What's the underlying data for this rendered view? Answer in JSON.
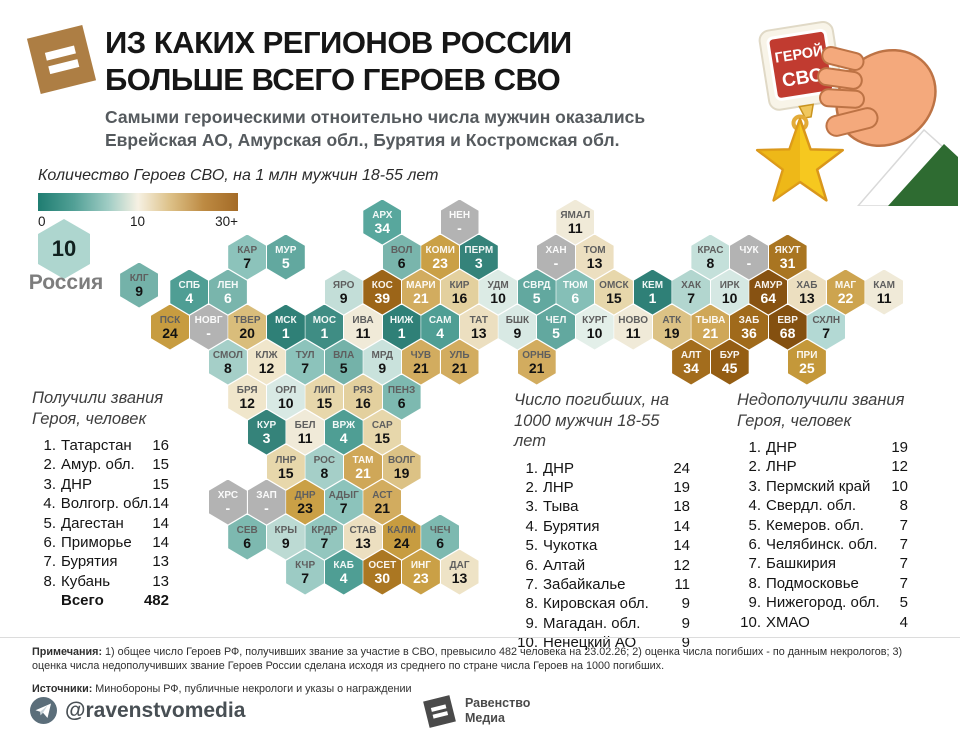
{
  "header": {
    "title_line1": "ИЗ КАКИХ РЕГИОНОВ РОССИИ",
    "title_line2": "БОЛЬШЕ ВСЕГО ГЕРОЕВ СВО",
    "subtitle_line1": "Самыми героическими отноительно числа мужчин оказались",
    "subtitle_line2": "Еврейская АО, Амурская обл., Бурятия и Костромская обл.",
    "medal": {
      "badge_line1": "ГЕРОЙ",
      "badge_line2": "СВО"
    }
  },
  "chart_data": {
    "type": "heatmap",
    "title": "ИЗ КАКИХ РЕГИОНОВ РОССИИ БОЛЬШЕ ВСЕГО ГЕРОЕВ СВО",
    "unit_label": "Количество Героев СВО, на 1 млн мужчин 18-55 лет",
    "scale": {
      "min": "0",
      "mid": "10",
      "max": "30+",
      "color_low": "#1f7d71",
      "color_mid": "#f6f1e3",
      "color_high": "#a46b27",
      "color_nodata": "#b3b3b3"
    },
    "national": {
      "label": "Россия",
      "value": "10",
      "color": "#aed6cf"
    },
    "regions": [
      {
        "l": "АРХ",
        "v": "34",
        "c": 11,
        "r": 0,
        "bg": "#58a79d",
        "t": "l"
      },
      {
        "l": "НЕН",
        "v": "-",
        "c": 15,
        "r": 0,
        "bg": "#b3b3b3",
        "t": "l"
      },
      {
        "l": "ЯМАЛ",
        "v": "11",
        "c": 21,
        "r": 0,
        "bg": "#f0ead8",
        "t": "d"
      },
      {
        "l": "КАР",
        "v": "7",
        "c": 4,
        "r": 1,
        "bg": "#8cc3bb",
        "t": "d"
      },
      {
        "l": "МУР",
        "v": "5",
        "c": 6,
        "r": 1,
        "bg": "#62a89f",
        "t": "l"
      },
      {
        "l": "ВОЛ",
        "v": "6",
        "c": 12,
        "r": 1,
        "bg": "#79b5ac",
        "t": "d"
      },
      {
        "l": "КОМИ",
        "v": "23",
        "c": 14,
        "r": 1,
        "bg": "#caa046",
        "t": "l"
      },
      {
        "l": "ПЕРМ",
        "v": "3",
        "c": 16,
        "r": 1,
        "bg": "#35837a",
        "t": "l"
      },
      {
        "l": "ХАН",
        "v": "-",
        "c": 20,
        "r": 1,
        "bg": "#b3b3b3",
        "t": "l"
      },
      {
        "l": "ТОМ",
        "v": "13",
        "c": 22,
        "r": 1,
        "bg": "#ecdfc0",
        "t": "d"
      },
      {
        "l": "КРАС",
        "v": "8",
        "c": 28,
        "r": 1,
        "bg": "#c4e0da",
        "t": "d"
      },
      {
        "l": "ЧУК",
        "v": "-",
        "c": 30,
        "r": 1,
        "bg": "#b3b3b3",
        "t": "l"
      },
      {
        "l": "ЯКУТ",
        "v": "31",
        "c": 32,
        "r": 1,
        "bg": "#a97521",
        "t": "l"
      },
      {
        "l": "КЛГ",
        "v": "9",
        "c": -1.6,
        "r": 1.8,
        "bg": "#74b2a9",
        "t": "d"
      },
      {
        "l": "СПБ",
        "v": "4",
        "c": 1,
        "r": 2,
        "bg": "#4f9e94",
        "t": "l"
      },
      {
        "l": "ЛЕН",
        "v": "6",
        "c": 3,
        "r": 2,
        "bg": "#79b5ac",
        "t": "l"
      },
      {
        "l": "ЯРО",
        "v": "9",
        "c": 9,
        "r": 2,
        "bg": "#c3ded8",
        "t": "d"
      },
      {
        "l": "КОС",
        "v": "39",
        "c": 11,
        "r": 2,
        "bg": "#9c6518",
        "t": "l"
      },
      {
        "l": "МАРИ",
        "v": "21",
        "c": 13,
        "r": 2,
        "bg": "#d2ac5f",
        "t": "l"
      },
      {
        "l": "КИР",
        "v": "16",
        "c": 15,
        "r": 2,
        "bg": "#e3d09e",
        "t": "d"
      },
      {
        "l": "УДМ",
        "v": "10",
        "c": 17,
        "r": 2,
        "bg": "#dcebe5",
        "t": "d"
      },
      {
        "l": "СВРД",
        "v": "5",
        "c": 19,
        "r": 2,
        "bg": "#62a89f",
        "t": "l"
      },
      {
        "l": "ТЮМ",
        "v": "6",
        "c": 21,
        "r": 2,
        "bg": "#85bfb7",
        "t": "l"
      },
      {
        "l": "ОМСК",
        "v": "15",
        "c": 23,
        "r": 2,
        "bg": "#e7d7ab",
        "t": "d"
      },
      {
        "l": "КЕМ",
        "v": "1",
        "c": 25,
        "r": 2,
        "bg": "#2f8077",
        "t": "l"
      },
      {
        "l": "ХАК",
        "v": "7",
        "c": 27,
        "r": 2,
        "bg": "#b2d6cf",
        "t": "d"
      },
      {
        "l": "ИРК",
        "v": "10",
        "c": 29,
        "r": 2,
        "bg": "#d5e8e3",
        "t": "d"
      },
      {
        "l": "АМУР",
        "v": "64",
        "c": 31,
        "r": 2,
        "bg": "#875212",
        "t": "l"
      },
      {
        "l": "ХАБ",
        "v": "13",
        "c": 33,
        "r": 2,
        "bg": "#ecdfc0",
        "t": "d"
      },
      {
        "l": "МАГ",
        "v": "22",
        "c": 35,
        "r": 2,
        "bg": "#cda44f",
        "t": "l"
      },
      {
        "l": "КАМ",
        "v": "11",
        "c": 37,
        "r": 2,
        "bg": "#f0ead8",
        "t": "d"
      },
      {
        "l": "ПСК",
        "v": "24",
        "c": 0,
        "r": 3,
        "bg": "#c79c40",
        "t": "d"
      },
      {
        "l": "НОВГ",
        "v": "-",
        "c": 2,
        "r": 3,
        "bg": "#b3b3b3",
        "t": "l"
      },
      {
        "l": "ТВЕР",
        "v": "20",
        "c": 4,
        "r": 3,
        "bg": "#d9bd7b",
        "t": "d"
      },
      {
        "l": "МСК",
        "v": "1",
        "c": 6,
        "r": 3,
        "bg": "#2f8077",
        "t": "l"
      },
      {
        "l": "МОС",
        "v": "1",
        "c": 8,
        "r": 3,
        "bg": "#3f8d84",
        "t": "l"
      },
      {
        "l": "ИВА",
        "v": "11",
        "c": 10,
        "r": 3,
        "bg": "#f0ead8",
        "t": "d"
      },
      {
        "l": "НИЖ",
        "v": "1",
        "c": 12,
        "r": 3,
        "bg": "#2f8077",
        "t": "l"
      },
      {
        "l": "САМ",
        "v": "4",
        "c": 14,
        "r": 3,
        "bg": "#4f9e94",
        "t": "l"
      },
      {
        "l": "ТАТ",
        "v": "13",
        "c": 16,
        "r": 3,
        "bg": "#ecdfc0",
        "t": "d"
      },
      {
        "l": "БШК",
        "v": "9",
        "c": 18,
        "r": 3,
        "bg": "#d8e9e4",
        "t": "d"
      },
      {
        "l": "ЧЕЛ",
        "v": "5",
        "c": 20,
        "r": 3,
        "bg": "#62a89f",
        "t": "l"
      },
      {
        "l": "КУРГ",
        "v": "10",
        "c": 22,
        "r": 3,
        "bg": "#e3efe9",
        "t": "d"
      },
      {
        "l": "НОВО",
        "v": "11",
        "c": 24,
        "r": 3,
        "bg": "#f0ead8",
        "t": "d"
      },
      {
        "l": "АТК",
        "v": "19",
        "c": 26,
        "r": 3,
        "bg": "#dcc285",
        "t": "d"
      },
      {
        "l": "ТЫВА",
        "v": "21",
        "c": 28,
        "r": 3,
        "bg": "#cfa758",
        "t": "l"
      },
      {
        "l": "ЗАБ",
        "v": "36",
        "c": 30,
        "r": 3,
        "bg": "#a06a1b",
        "t": "l"
      },
      {
        "l": "ЕВР",
        "v": "68",
        "c": 32,
        "r": 3,
        "bg": "#845010",
        "t": "l"
      },
      {
        "l": "СХЛН",
        "v": "7",
        "c": 34,
        "r": 3,
        "bg": "#b3d9d4",
        "t": "d"
      },
      {
        "l": "СМОЛ",
        "v": "8",
        "c": 3,
        "r": 4,
        "bg": "#a5cfc8",
        "t": "d"
      },
      {
        "l": "КЛЖ",
        "v": "12",
        "c": 5,
        "r": 4,
        "bg": "#f0e6cb",
        "t": "d"
      },
      {
        "l": "ТУЛ",
        "v": "7",
        "c": 7,
        "r": 4,
        "bg": "#8cc3bb",
        "t": "d"
      },
      {
        "l": "ВЛА",
        "v": "5",
        "c": 9,
        "r": 4,
        "bg": "#74b2a9",
        "t": "d"
      },
      {
        "l": "МРД",
        "v": "9",
        "c": 11,
        "r": 4,
        "bg": "#c9e2dc",
        "t": "d"
      },
      {
        "l": "ЧУВ",
        "v": "21",
        "c": 13,
        "r": 4,
        "bg": "#d2ac5f",
        "t": "d"
      },
      {
        "l": "УЛЬ",
        "v": "21",
        "c": 15,
        "r": 4,
        "bg": "#d2ac5f",
        "t": "d"
      },
      {
        "l": "ОРНБ",
        "v": "21",
        "c": 19,
        "r": 4,
        "bg": "#d2ac5f",
        "t": "d"
      },
      {
        "l": "АЛТ",
        "v": "34",
        "c": 27,
        "r": 4,
        "bg": "#a36d1d",
        "t": "l"
      },
      {
        "l": "БУР",
        "v": "45",
        "c": 29,
        "r": 4,
        "bg": "#945d13",
        "t": "l"
      },
      {
        "l": "ПРИ",
        "v": "25",
        "c": 33,
        "r": 4,
        "bg": "#c4983a",
        "t": "l"
      },
      {
        "l": "БРЯ",
        "v": "12",
        "c": 4,
        "r": 5,
        "bg": "#f0e6cb",
        "t": "d"
      },
      {
        "l": "ОРЛ",
        "v": "10",
        "c": 6,
        "r": 5,
        "bg": "#d8e9e4",
        "t": "d"
      },
      {
        "l": "ЛИП",
        "v": "15",
        "c": 8,
        "r": 5,
        "bg": "#e7d7ab",
        "t": "d"
      },
      {
        "l": "РЯЗ",
        "v": "16",
        "c": 10,
        "r": 5,
        "bg": "#e3d09e",
        "t": "d"
      },
      {
        "l": "ПЕНЗ",
        "v": "6",
        "c": 12,
        "r": 5,
        "bg": "#7db9b0",
        "t": "d"
      },
      {
        "l": "КУР",
        "v": "3",
        "c": 5,
        "r": 6,
        "bg": "#35837a",
        "t": "l"
      },
      {
        "l": "БЕЛ",
        "v": "11",
        "c": 7,
        "r": 6,
        "bg": "#f0ead8",
        "t": "d"
      },
      {
        "l": "ВРЖ",
        "v": "4",
        "c": 9,
        "r": 6,
        "bg": "#4f9e94",
        "t": "l"
      },
      {
        "l": "САР",
        "v": "15",
        "c": 11,
        "r": 6,
        "bg": "#e7d7ab",
        "t": "d"
      },
      {
        "l": "ЛНР",
        "v": "15",
        "c": 6,
        "r": 7,
        "bg": "#e7d7ab",
        "t": "d"
      },
      {
        "l": "РОС",
        "v": "8",
        "c": 8,
        "r": 7,
        "bg": "#a5cfc8",
        "t": "d"
      },
      {
        "l": "ТАМ",
        "v": "21",
        "c": 10,
        "r": 7,
        "bg": "#cfa758",
        "t": "l"
      },
      {
        "l": "ВОЛГ",
        "v": "19",
        "c": 12,
        "r": 7,
        "bg": "#dcc285",
        "t": "d"
      },
      {
        "l": "ХРС",
        "v": "-",
        "c": 3,
        "r": 8,
        "bg": "#b3b3b3",
        "t": "l"
      },
      {
        "l": "ЗАП",
        "v": "-",
        "c": 5,
        "r": 8,
        "bg": "#b3b3b3",
        "t": "l"
      },
      {
        "l": "ДНР",
        "v": "23",
        "c": 7,
        "r": 8,
        "bg": "#caa046",
        "t": "d"
      },
      {
        "l": "АДЫГ",
        "v": "7",
        "c": 9,
        "r": 8,
        "bg": "#8cc3bb",
        "t": "d"
      },
      {
        "l": "АСТ",
        "v": "21",
        "c": 11,
        "r": 8,
        "bg": "#d2ac5f",
        "t": "d"
      },
      {
        "l": "СЕВ",
        "v": "6",
        "c": 4,
        "r": 9,
        "bg": "#7db9b0",
        "t": "d"
      },
      {
        "l": "КРЫ",
        "v": "9",
        "c": 6,
        "r": 9,
        "bg": "#bcdad3",
        "t": "d"
      },
      {
        "l": "КРДР",
        "v": "7",
        "c": 8,
        "r": 9,
        "bg": "#93c6be",
        "t": "d"
      },
      {
        "l": "СТАВ",
        "v": "13",
        "c": 10,
        "r": 9,
        "bg": "#ecdfc0",
        "t": "d"
      },
      {
        "l": "КАЛМ",
        "v": "24",
        "c": 12,
        "r": 9,
        "bg": "#c79c40",
        "t": "d"
      },
      {
        "l": "ЧЕЧ",
        "v": "6",
        "c": 14,
        "r": 9,
        "bg": "#7db9b0",
        "t": "d"
      },
      {
        "l": "КЧР",
        "v": "7",
        "c": 7,
        "r": 10,
        "bg": "#9ccbc4",
        "t": "d"
      },
      {
        "l": "КАБ",
        "v": "4",
        "c": 9,
        "r": 10,
        "bg": "#4f9e94",
        "t": "l"
      },
      {
        "l": "ОСЕТ",
        "v": "30",
        "c": 11,
        "r": 10,
        "bg": "#ab7722",
        "t": "l"
      },
      {
        "l": "ИНГ",
        "v": "23",
        "c": 13,
        "r": 10,
        "bg": "#caa046",
        "t": "l"
      },
      {
        "l": "ДАГ",
        "v": "13",
        "c": 15,
        "r": 10,
        "bg": "#eee3c6",
        "t": "d"
      }
    ],
    "rankings": [
      {
        "title_line1": "Получили звания",
        "title_line2": "Героя, человек",
        "items": [
          {
            "rank": "1.",
            "name": "Татарстан",
            "value": "16"
          },
          {
            "rank": "2.",
            "name": "Амур. обл.",
            "value": "15"
          },
          {
            "rank": "3.",
            "name": "ДНР",
            "value": "15"
          },
          {
            "rank": "4.",
            "name": "Волгогр. обл.",
            "value": "14"
          },
          {
            "rank": "5.",
            "name": "Дагестан",
            "value": "14"
          },
          {
            "rank": "6.",
            "name": "Приморье",
            "value": "14"
          },
          {
            "rank": "7.",
            "name": "Бурятия",
            "value": "13"
          },
          {
            "rank": "8.",
            "name": "Кубань",
            "value": "13"
          }
        ],
        "total_label": "Всего",
        "total_value": "482"
      },
      {
        "title_line1": "Число погибших, на",
        "title_line2": "1000 мужчин 18-55 лет",
        "items": [
          {
            "rank": "1.",
            "name": "ДНР",
            "value": "24"
          },
          {
            "rank": "2.",
            "name": "ЛНР",
            "value": "19"
          },
          {
            "rank": "3.",
            "name": "Тыва",
            "value": "18"
          },
          {
            "rank": "4.",
            "name": "Бурятия",
            "value": "14"
          },
          {
            "rank": "5.",
            "name": "Чукотка",
            "value": "14"
          },
          {
            "rank": "6.",
            "name": "Алтай",
            "value": "12"
          },
          {
            "rank": "7.",
            "name": "Забайкалье",
            "value": "11"
          },
          {
            "rank": "8.",
            "name": "Кировская обл.",
            "value": "9"
          },
          {
            "rank": "9.",
            "name": "Магадан. обл.",
            "value": "9"
          },
          {
            "rank": "10.",
            "name": "Ненецкий АО",
            "value": "9"
          }
        ]
      },
      {
        "title_line1": "Недополучили звания",
        "title_line2": "Героя, человек",
        "items": [
          {
            "rank": "1.",
            "name": "ДНР",
            "value": "19"
          },
          {
            "rank": "2.",
            "name": "ЛНР",
            "value": "12"
          },
          {
            "rank": "3.",
            "name": "Пермский край",
            "value": "10"
          },
          {
            "rank": "4.",
            "name": "Свердл. обл.",
            "value": "8"
          },
          {
            "rank": "5.",
            "name": "Кемеров. обл.",
            "value": "7"
          },
          {
            "rank": "6.",
            "name": "Челябинск. обл.",
            "value": "7"
          },
          {
            "rank": "7.",
            "name": "Башкирия",
            "value": "7"
          },
          {
            "rank": "8.",
            "name": "Подмосковье",
            "value": "7"
          },
          {
            "rank": "9.",
            "name": "Нижегород. обл.",
            "value": "5"
          },
          {
            "rank": "10.",
            "name": "ХМАО",
            "value": "4"
          }
        ]
      }
    ]
  },
  "footer": {
    "notes_label": "Примечания:",
    "notes_text": " 1) общее число Героев РФ, получивших звание за участие в СВО, превысило 482 человека на 23.02.26; 2) оценка числа погибших - по данным некрологов; 3) оценка числа недополучивших звание Героев России сделана исходя из среднего по стране числа Героев на 1000 погибших.",
    "sources_label": "Источники:",
    "sources_text": " Минобороны РФ, публичные некрологи и указы о награждении",
    "telegram_handle": "@ravenstvomedia",
    "brand_line1": "Равенство",
    "brand_line2": "Медиа"
  }
}
